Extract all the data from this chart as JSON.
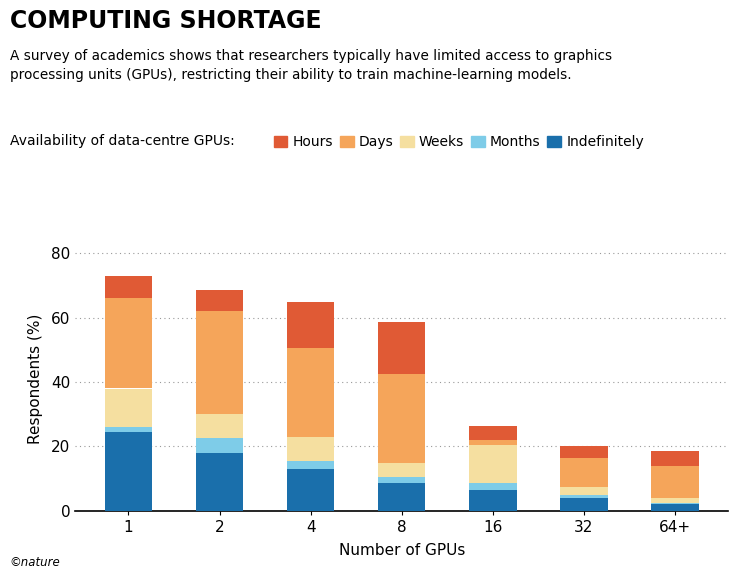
{
  "categories": [
    "1",
    "2",
    "4",
    "8",
    "16",
    "32",
    "64+"
  ],
  "segments": {
    "Indefinitely": [
      24.5,
      18.0,
      13.0,
      8.5,
      6.5,
      4.0,
      2.0
    ],
    "Months": [
      1.5,
      4.5,
      2.5,
      2.0,
      2.0,
      1.0,
      0.5
    ],
    "Weeks": [
      12.0,
      7.5,
      7.5,
      4.5,
      12.0,
      2.5,
      1.5
    ],
    "Days": [
      28.0,
      32.0,
      27.5,
      27.5,
      1.5,
      9.0,
      10.0
    ],
    "Hours": [
      7.0,
      6.5,
      14.5,
      16.0,
      4.5,
      3.5,
      4.5
    ]
  },
  "colors": {
    "Indefinitely": "#1a6fab",
    "Months": "#7ecce8",
    "Weeks": "#f5dfa0",
    "Days": "#f5a55a",
    "Hours": "#e05a35"
  },
  "title": "COMPUTING SHORTAGE",
  "subtitle": "A survey of academics shows that researchers typically have limited access to graphics\nprocessing units (GPUs), restricting their ability to train machine-learning models.",
  "legend_label": "Availability of data-centre GPUs:",
  "legend_order": [
    "Hours",
    "Days",
    "Weeks",
    "Months",
    "Indefinitely"
  ],
  "xlabel": "Number of GPUs",
  "ylabel": "Respondents (%)",
  "ylim": [
    0,
    82
  ],
  "yticks": [
    0,
    20,
    40,
    60,
    80
  ],
  "background_color": "#ffffff",
  "footer": "©nature"
}
